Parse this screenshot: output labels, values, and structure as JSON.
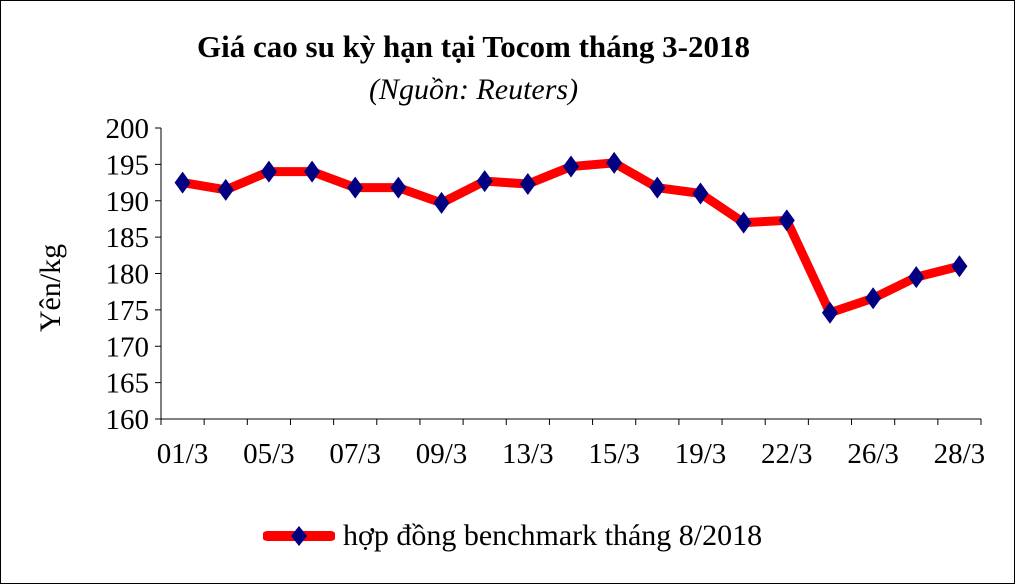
{
  "chart_data": {
    "type": "line",
    "title": "Giá cao su kỳ hạn tại Tocom tháng 3-2018",
    "subtitle": "(Nguồn: Reuters)",
    "xlabel": "",
    "ylabel": "Yên/kg",
    "ylim": [
      160,
      200
    ],
    "yticks": [
      160,
      165,
      170,
      175,
      180,
      185,
      190,
      195,
      200
    ],
    "x_tick_labels": [
      "01/3",
      "05/3",
      "07/3",
      "09/3",
      "13/3",
      "15/3",
      "19/3",
      "22/3",
      "26/3",
      "28/3"
    ],
    "x_tick_every": 2,
    "grid": false,
    "legend": "bottom",
    "series": [
      {
        "name": "hợp đồng benchmark tháng 8/2018",
        "line_color": "#ff0000",
        "marker_color": "#000080",
        "marker": "diamond",
        "values": [
          192.5,
          191.5,
          194.0,
          194.0,
          191.8,
          191.8,
          189.7,
          192.7,
          192.3,
          194.7,
          195.2,
          191.8,
          191.0,
          187.0,
          187.3,
          174.6,
          176.6,
          179.5,
          181.0
        ]
      }
    ]
  }
}
